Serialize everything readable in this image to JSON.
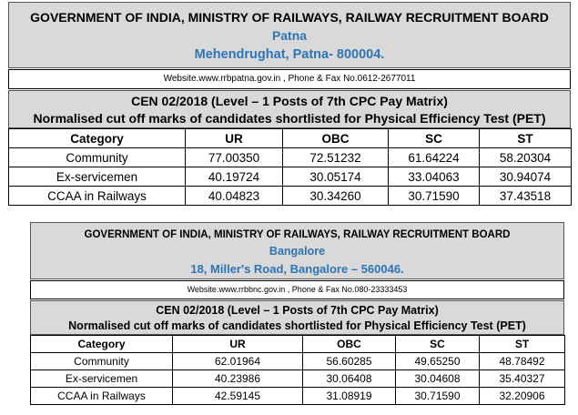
{
  "notices": [
    {
      "header": {
        "org": "GOVERNMENT OF INDIA, MINISTRY OF RAILWAYS, RAILWAY RECRUITMENT BOARD",
        "city": "Patna",
        "address": "Mehendrughat,  Patna- 800004."
      },
      "website_line": "Website.www.rrbpatna.gov.in , Phone & Fax No.0612-2677011",
      "cen_title": "CEN 02/2018 (Level – 1 Posts of 7th CPC Pay Matrix)",
      "subtitle": "Normalised cut off marks of candidates shortlisted for Physical Efficiency Test (PET)",
      "table": {
        "headers": [
          "Category",
          "UR",
          "OBC",
          "SC",
          "ST"
        ],
        "rows": [
          [
            "Community",
            "77.00350",
            "72.51232",
            "61.64224",
            "58.20304"
          ],
          [
            "Ex-servicemen",
            "40.19724",
            "30.05174",
            "33.04063",
            "30.94074"
          ],
          [
            "CCAA in Railways",
            "40.04823",
            "30.34260",
            "30.71590",
            "37.43518"
          ]
        ]
      }
    },
    {
      "header": {
        "org": "GOVERNMENT OF INDIA, MINISTRY OF RAILWAYS, RAILWAY RECRUITMENT BOARD",
        "city": "Bangalore",
        "address": "18, Miller's Road,  Bangalore – 560046."
      },
      "website_line": "Website.www.rrbbnc.gov.in , Phone & Fax No.080-23333453",
      "cen_title": "CEN 02/2018 (Level – 1 Posts of 7th CPC Pay Matrix)",
      "subtitle": "Normalised cut off marks of candidates shortlisted for Physical Efficiency Test (PET)",
      "table": {
        "headers": [
          "Category",
          "UR",
          "OBC",
          "SC",
          "ST"
        ],
        "rows": [
          [
            "Community",
            "62.01964",
            "56.60285",
            "49.65250",
            "48.78492"
          ],
          [
            "Ex-servicemen",
            "40.23986",
            "30.06408",
            "30.04608",
            "35.40327"
          ],
          [
            "CCAA in Railways",
            "42.59145",
            "31.08919",
            "30.71590",
            "32.20906"
          ]
        ]
      }
    }
  ]
}
